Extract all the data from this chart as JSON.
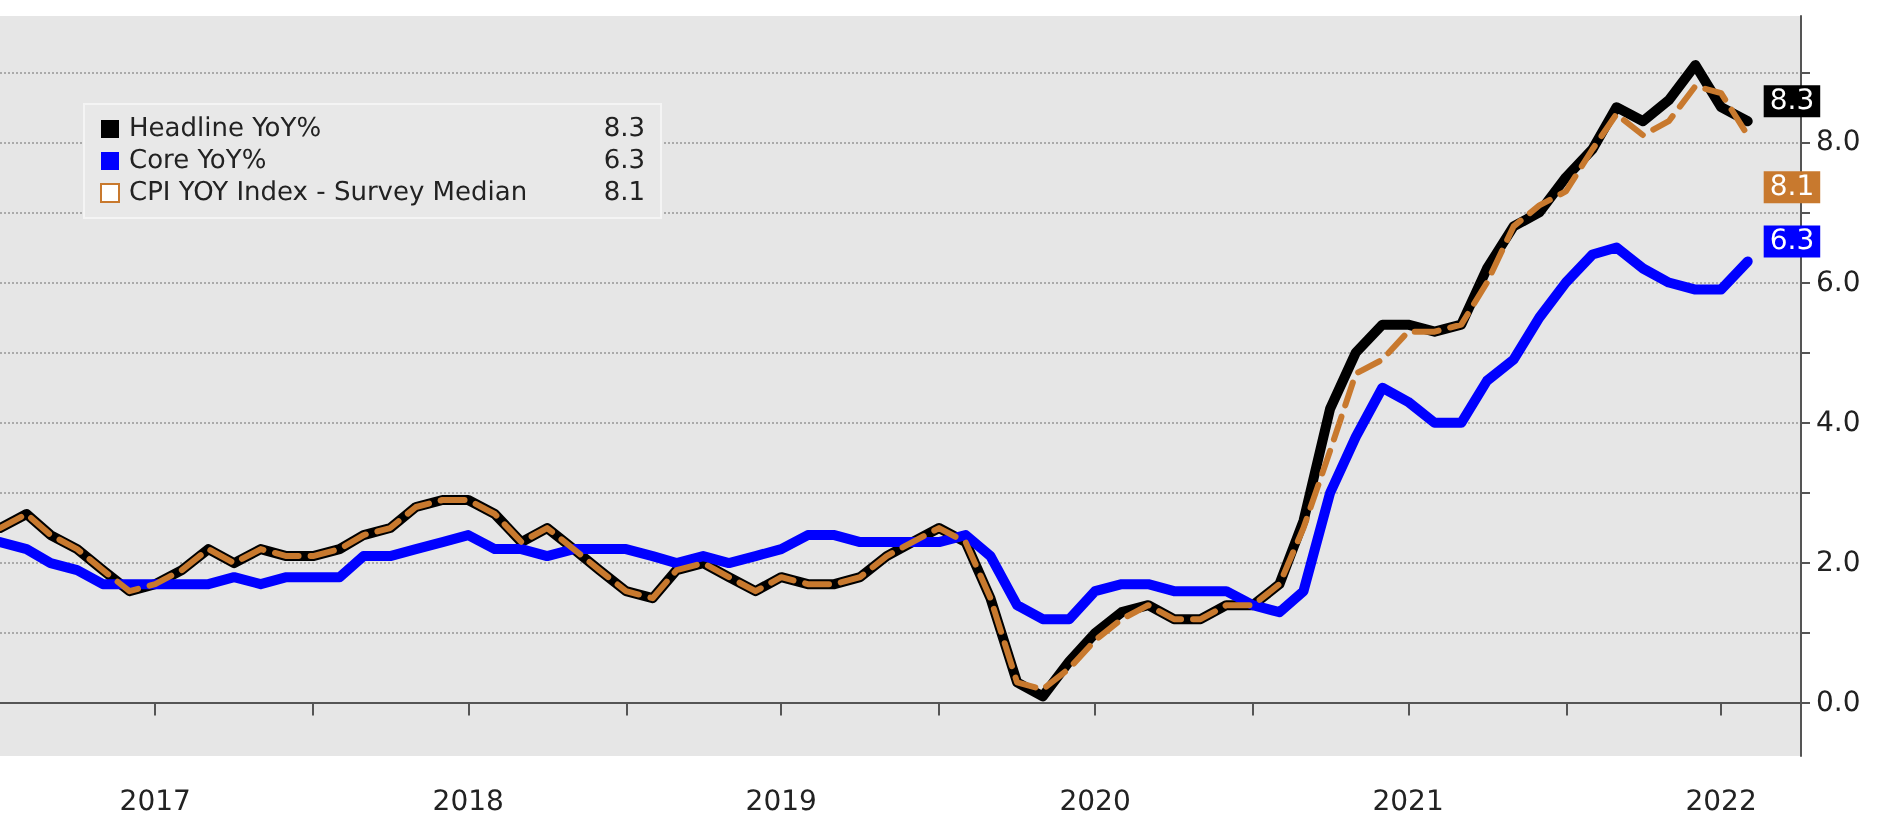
{
  "chart_data": {
    "type": "line",
    "xlim": [
      "2017-01",
      "2022-10"
    ],
    "xticks": [
      {
        "value": "2017-07",
        "label": "2017"
      },
      {
        "value": "2018-01",
        "label": null
      },
      {
        "value": "2018-07",
        "label": "2018"
      },
      {
        "value": "2019-01",
        "label": null
      },
      {
        "value": "2019-07",
        "label": "2019"
      },
      {
        "value": "2020-01",
        "label": null
      },
      {
        "value": "2020-07",
        "label": "2020"
      },
      {
        "value": "2021-01",
        "label": null
      },
      {
        "value": "2021-07",
        "label": "2021"
      },
      {
        "value": "2022-01",
        "label": null
      },
      {
        "value": "2022-07",
        "label": "2022"
      }
    ],
    "ylim": [
      -0.75,
      9.8
    ],
    "yticks": [
      {
        "value": 0,
        "label": "0.0"
      },
      {
        "value": 1,
        "label": null
      },
      {
        "value": 2,
        "label": "2.0"
      },
      {
        "value": 3,
        "label": null
      },
      {
        "value": 4,
        "label": "4.0"
      },
      {
        "value": 5,
        "label": null
      },
      {
        "value": 6,
        "label": "6.0"
      },
      {
        "value": 7,
        "label": null
      },
      {
        "value": 8,
        "label": "8.0"
      },
      {
        "value": 9,
        "label": null
      }
    ],
    "x": [
      "2017-01",
      "2017-02",
      "2017-03",
      "2017-04",
      "2017-05",
      "2017-06",
      "2017-07",
      "2017-08",
      "2017-09",
      "2017-10",
      "2017-11",
      "2017-12",
      "2018-01",
      "2018-02",
      "2018-03",
      "2018-04",
      "2018-05",
      "2018-06",
      "2018-07",
      "2018-08",
      "2018-09",
      "2018-10",
      "2018-11",
      "2018-12",
      "2019-01",
      "2019-02",
      "2019-03",
      "2019-04",
      "2019-05",
      "2019-06",
      "2019-07",
      "2019-08",
      "2019-09",
      "2019-10",
      "2019-11",
      "2019-12",
      "2020-01",
      "2020-02",
      "2020-03",
      "2020-04",
      "2020-05",
      "2020-06",
      "2020-07",
      "2020-08",
      "2020-09",
      "2020-10",
      "2020-11",
      "2020-12",
      "2021-01",
      "2021-02",
      "2021-03",
      "2021-04",
      "2021-05",
      "2021-06",
      "2021-07",
      "2021-08",
      "2021-09",
      "2021-10",
      "2021-11",
      "2021-12",
      "2022-01",
      "2022-02",
      "2022-03",
      "2022-04",
      "2022-05",
      "2022-06",
      "2022-07",
      "2022-08"
    ],
    "series": [
      {
        "name": "Headline YoY%",
        "color": "#000000",
        "values": [
          2.5,
          2.7,
          2.4,
          2.2,
          1.9,
          1.6,
          1.7,
          1.9,
          2.2,
          2.0,
          2.2,
          2.1,
          2.1,
          2.2,
          2.4,
          2.5,
          2.8,
          2.9,
          2.9,
          2.7,
          2.3,
          2.5,
          2.2,
          1.9,
          1.6,
          1.5,
          1.9,
          2.0,
          1.8,
          1.6,
          1.8,
          1.7,
          1.7,
          1.8,
          2.1,
          2.3,
          2.5,
          2.3,
          1.5,
          0.3,
          0.1,
          0.6,
          1.0,
          1.3,
          1.4,
          1.2,
          1.2,
          1.4,
          1.4,
          1.7,
          2.6,
          4.2,
          5.0,
          5.4,
          5.4,
          5.3,
          5.4,
          6.2,
          6.8,
          7.0,
          7.5,
          7.9,
          8.5,
          8.3,
          8.6,
          9.1,
          8.5,
          8.3
        ],
        "value_labels": [
          null,
          null,
          null,
          null,
          null,
          null,
          null,
          null,
          null,
          null,
          null,
          null,
          null,
          null,
          null,
          null,
          null,
          null,
          null,
          null,
          null,
          null,
          null,
          null,
          null,
          null,
          null,
          null,
          null,
          null,
          null,
          null,
          null,
          null,
          null,
          null,
          null,
          null,
          null,
          null,
          null,
          null,
          null,
          null,
          null,
          null,
          null,
          null,
          null,
          null,
          null,
          null,
          null,
          null,
          null,
          null,
          null,
          null,
          null,
          null,
          null,
          null,
          null,
          null,
          null,
          null,
          null,
          "8.3"
        ]
      },
      {
        "name": "Core YoY%",
        "color": "#0000ff",
        "values": [
          2.3,
          2.2,
          2.0,
          1.9,
          1.7,
          1.7,
          1.7,
          1.7,
          1.7,
          1.8,
          1.7,
          1.8,
          1.8,
          1.8,
          2.1,
          2.1,
          2.2,
          2.3,
          2.4,
          2.2,
          2.2,
          2.1,
          2.2,
          2.2,
          2.2,
          2.1,
          2.0,
          2.1,
          2.0,
          2.1,
          2.2,
          2.4,
          2.4,
          2.3,
          2.3,
          2.3,
          2.3,
          2.4,
          2.1,
          1.4,
          1.2,
          1.2,
          1.6,
          1.7,
          1.7,
          1.6,
          1.6,
          1.6,
          1.4,
          1.3,
          1.6,
          3.0,
          3.8,
          4.5,
          4.3,
          4.0,
          4.0,
          4.6,
          4.9,
          5.5,
          6.0,
          6.4,
          6.5,
          6.2,
          6.0,
          5.9,
          5.9,
          6.3
        ],
        "value_labels": [
          null,
          null,
          null,
          null,
          null,
          null,
          null,
          null,
          null,
          null,
          null,
          null,
          null,
          null,
          null,
          null,
          null,
          null,
          null,
          null,
          null,
          null,
          null,
          null,
          null,
          null,
          null,
          null,
          null,
          null,
          null,
          null,
          null,
          null,
          null,
          null,
          null,
          null,
          null,
          null,
          null,
          null,
          null,
          null,
          null,
          null,
          null,
          null,
          null,
          null,
          null,
          null,
          null,
          null,
          null,
          null,
          null,
          null,
          null,
          null,
          null,
          null,
          null,
          null,
          null,
          null,
          null,
          "6.3"
        ]
      },
      {
        "name": "CPI YOY Index - Survey Median",
        "color": "#c8792e",
        "line_style": "dashed",
        "values": [
          2.5,
          2.7,
          2.4,
          2.2,
          1.9,
          1.6,
          1.7,
          1.9,
          2.2,
          2.0,
          2.2,
          2.1,
          2.1,
          2.2,
          2.4,
          2.5,
          2.8,
          2.9,
          2.9,
          2.7,
          2.3,
          2.5,
          2.2,
          1.9,
          1.6,
          1.5,
          1.9,
          2.0,
          1.8,
          1.6,
          1.8,
          1.7,
          1.7,
          1.8,
          2.1,
          2.3,
          2.5,
          2.3,
          1.5,
          0.3,
          0.2,
          0.5,
          0.9,
          1.2,
          1.4,
          1.2,
          1.2,
          1.4,
          1.4,
          1.7,
          2.5,
          3.6,
          4.7,
          4.9,
          5.3,
          5.3,
          5.4,
          6.0,
          6.8,
          7.1,
          7.3,
          7.9,
          8.4,
          8.1,
          8.3,
          8.8,
          8.7,
          8.1
        ],
        "value_labels": [
          null,
          null,
          null,
          null,
          null,
          null,
          null,
          null,
          null,
          null,
          null,
          null,
          null,
          null,
          null,
          null,
          null,
          null,
          null,
          null,
          null,
          null,
          null,
          null,
          null,
          null,
          null,
          null,
          null,
          null,
          null,
          null,
          null,
          null,
          null,
          null,
          null,
          null,
          null,
          null,
          null,
          null,
          null,
          null,
          null,
          null,
          null,
          null,
          null,
          null,
          null,
          null,
          null,
          null,
          null,
          null,
          null,
          null,
          null,
          null,
          null,
          null,
          null,
          null,
          null,
          null,
          null,
          "8.1"
        ]
      }
    ],
    "legend": "top left",
    "grid": "y",
    "marker": "none"
  }
}
